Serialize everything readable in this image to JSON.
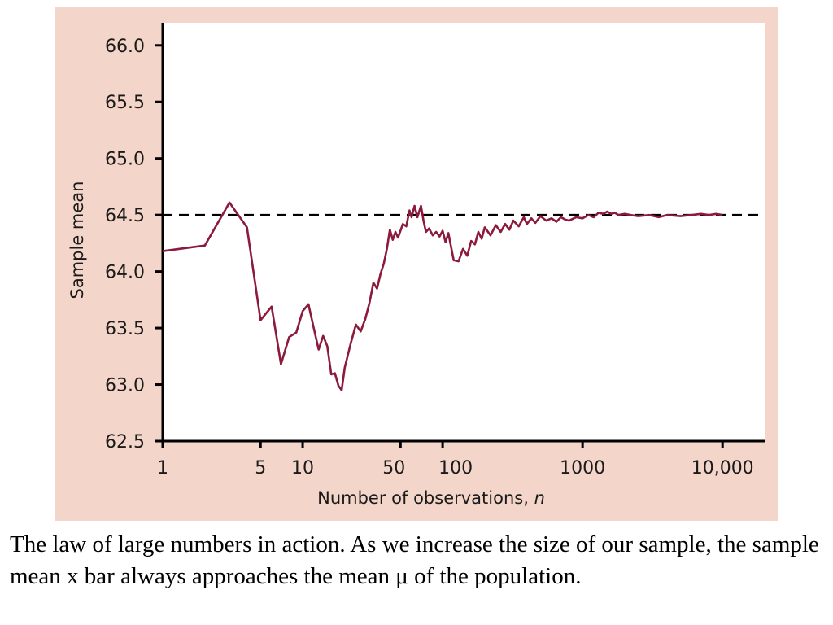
{
  "caption": "The law of large numbers in action.  As we increase the size of our sample, the sample mean x bar always approaches the mean μ of the population.",
  "colors": {
    "panel_background": "#f4d5c9",
    "plot_background": "#ffffff",
    "series_line": "#8b1a3c",
    "reference_line": "#000000"
  },
  "chart_data": {
    "type": "line",
    "title": "",
    "xlabel": "Number of observations, ",
    "xlabel_italic": "n",
    "ylabel": "Sample mean",
    "x_scale": "log",
    "xlim": [
      1,
      20000
    ],
    "ylim": [
      62.5,
      66.2
    ],
    "x_ticks": [
      1,
      5,
      10,
      50,
      100,
      1000,
      10000
    ],
    "x_tick_labels": [
      "1",
      "5",
      "10",
      "50",
      "100",
      "1000",
      "10,000"
    ],
    "y_ticks": [
      62.5,
      63.0,
      63.5,
      64.0,
      64.5,
      65.0,
      65.5,
      66.0
    ],
    "y_tick_labels": [
      "62.5",
      "63.0",
      "63.5",
      "64.0",
      "64.5",
      "65.0",
      "65.5",
      "66.0"
    ],
    "reference_line": {
      "y": 64.5,
      "style": "dashed"
    },
    "grid": false,
    "series": [
      {
        "x": [
          1,
          2,
          3,
          4,
          5,
          6,
          7,
          8,
          9,
          10,
          11,
          12,
          13,
          14,
          15,
          16,
          17,
          18,
          19,
          20,
          22,
          24,
          26,
          28,
          30,
          32,
          34,
          36,
          38,
          40,
          42,
          44,
          46,
          48,
          50,
          52,
          55,
          58,
          60,
          63,
          66,
          70,
          73,
          76,
          80,
          85,
          90,
          95,
          100,
          105,
          110,
          120,
          130,
          140,
          150,
          160,
          170,
          180,
          190,
          200,
          220,
          240,
          260,
          280,
          300,
          320,
          350,
          380,
          400,
          430,
          460,
          500,
          550,
          600,
          650,
          700,
          750,
          800,
          900,
          1000,
          1100,
          1200,
          1300,
          1400,
          1500,
          1600,
          1700,
          1800,
          2000,
          2200,
          2500,
          3000,
          3500,
          4000,
          5000,
          6000,
          7000,
          8000,
          9000,
          10000
        ],
        "y": [
          64.18,
          64.23,
          64.61,
          64.39,
          63.57,
          63.69,
          63.18,
          63.42,
          63.46,
          63.65,
          63.71,
          63.5,
          63.31,
          63.43,
          63.34,
          63.09,
          63.1,
          62.99,
          62.95,
          63.15,
          63.36,
          63.53,
          63.47,
          63.58,
          63.72,
          63.9,
          63.85,
          63.98,
          64.07,
          64.2,
          64.37,
          64.28,
          64.35,
          64.3,
          64.36,
          64.42,
          64.4,
          64.54,
          64.48,
          64.58,
          64.48,
          64.58,
          64.45,
          64.35,
          64.38,
          64.32,
          64.35,
          64.31,
          64.36,
          64.26,
          64.34,
          64.1,
          64.09,
          64.2,
          64.14,
          64.27,
          64.24,
          64.35,
          64.29,
          64.39,
          64.32,
          64.41,
          64.35,
          64.42,
          64.37,
          64.45,
          64.4,
          64.48,
          64.42,
          64.47,
          64.43,
          64.49,
          64.45,
          64.47,
          64.44,
          64.48,
          64.46,
          64.45,
          64.48,
          64.47,
          64.5,
          64.48,
          64.52,
          64.51,
          64.53,
          64.51,
          64.52,
          64.5,
          64.51,
          64.5,
          64.49,
          64.5,
          64.48,
          64.5,
          64.49,
          64.5,
          64.51,
          64.5,
          64.51,
          64.5
        ]
      }
    ]
  }
}
